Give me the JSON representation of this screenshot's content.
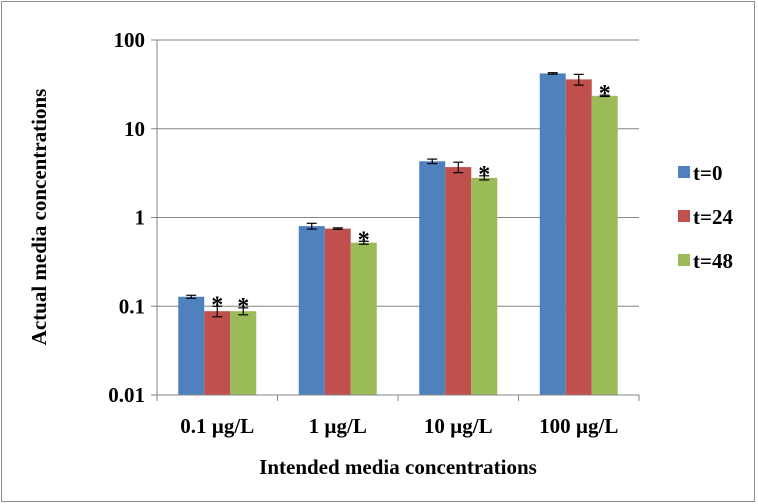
{
  "chart_data": {
    "type": "bar",
    "yscale": "log",
    "ylim": [
      0.01,
      100
    ],
    "ytick_labels": [
      "100",
      "10",
      "1",
      "0.1",
      "0.01"
    ],
    "ytick_values": [
      100,
      10,
      1,
      0.1,
      0.01
    ],
    "grid": "horizontal",
    "legend_position": "right",
    "xlabel": "Intended media concentrations",
    "ylabel": "Actual media concentrations",
    "categories": [
      "0.1 µg/L",
      "1 µg/L",
      "10 µg/L",
      "100 µg/L"
    ],
    "series": [
      {
        "name": "t=0",
        "color": "#4f81bd",
        "values": [
          0.128,
          0.8,
          4.3,
          42
        ],
        "errors": [
          0.005,
          0.06,
          0.25,
          0.8
        ],
        "significant": [
          false,
          false,
          false,
          false
        ]
      },
      {
        "name": "t=24",
        "color": "#c0504d",
        "values": [
          0.088,
          0.75,
          3.7,
          36
        ],
        "errors": [
          0.012,
          0.015,
          0.5,
          5
        ],
        "significant": [
          true,
          false,
          false,
          false
        ]
      },
      {
        "name": "t=48",
        "color": "#9bbb59",
        "values": [
          0.088,
          0.52,
          2.8,
          23.5
        ],
        "errors": [
          0.008,
          0.02,
          0.15,
          0.4
        ],
        "significant": [
          true,
          true,
          true,
          true
        ]
      }
    ],
    "significance_marker": "*"
  }
}
